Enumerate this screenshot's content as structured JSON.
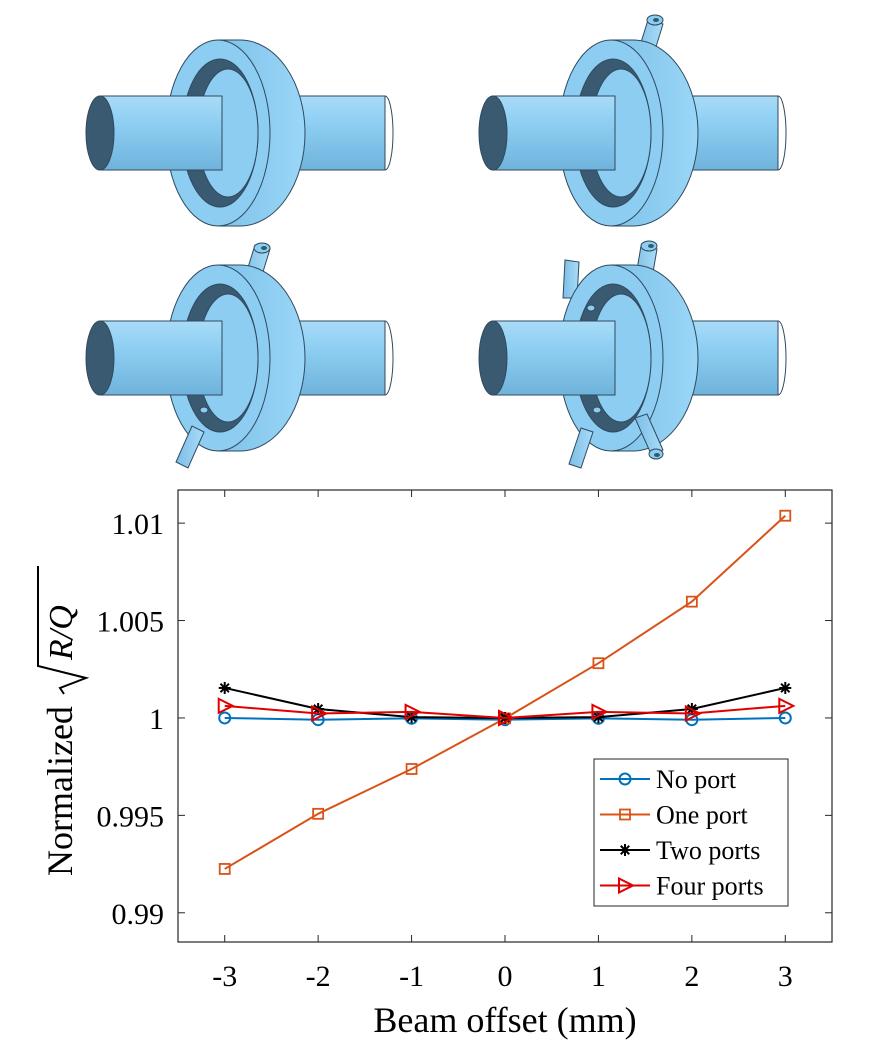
{
  "figure": {
    "illustrations": [
      {
        "label": "Cavity with no port",
        "ports": 0
      },
      {
        "label": "Cavity with one port",
        "ports": 1
      },
      {
        "label": "Cavity with two ports",
        "ports": 2
      },
      {
        "label": "Cavity with four ports",
        "ports": 4
      }
    ],
    "colors": {
      "cavity_fill": "#8ecdf2",
      "cavity_dark": "#3a5a72",
      "cavity_edge": "#2f4a5e"
    }
  },
  "chart_data": {
    "type": "line",
    "title": "",
    "xlabel": "Beam offset (mm)",
    "ylabel_prefix": "Normalized",
    "ylabel_math": "R/Q",
    "x": [
      -3,
      -2,
      -1,
      0,
      1,
      2,
      3
    ],
    "xlim": [
      -3.5,
      3.5
    ],
    "ylim": [
      0.9885,
      1.0117
    ],
    "xticks": [
      -3,
      -2,
      -1,
      0,
      1,
      2,
      3
    ],
    "xtick_labels": [
      "-3",
      "-2",
      "-1",
      "0",
      "1",
      "2",
      "3"
    ],
    "yticks": [
      0.99,
      0.995,
      1,
      1.005,
      1.01
    ],
    "ytick_labels": [
      "0.99",
      "0.995",
      "1",
      "1.005",
      "1.01"
    ],
    "grid": false,
    "legend_position": "bottom-right",
    "series": [
      {
        "name": "No port",
        "color": "#0072BD",
        "marker": "circle",
        "values": [
          1.0,
          0.99991,
          0.99998,
          0.99991,
          0.99998,
          0.99991,
          1.0
        ]
      },
      {
        "name": "One port",
        "color": "#D95319",
        "marker": "square",
        "values": [
          0.99225,
          0.99508,
          0.99738,
          0.99998,
          1.00281,
          1.00597,
          1.01038
        ]
      },
      {
        "name": "Two ports",
        "color": "#000000",
        "marker": "asterisk",
        "values": [
          1.00154,
          1.00046,
          1.00004,
          1.0,
          1.00004,
          1.00046,
          1.00154
        ]
      },
      {
        "name": "Four ports",
        "color": "#E00000",
        "marker": "triangle-right",
        "values": [
          1.00062,
          1.00023,
          1.00031,
          1.0,
          1.00031,
          1.00023,
          1.00062
        ]
      }
    ]
  }
}
